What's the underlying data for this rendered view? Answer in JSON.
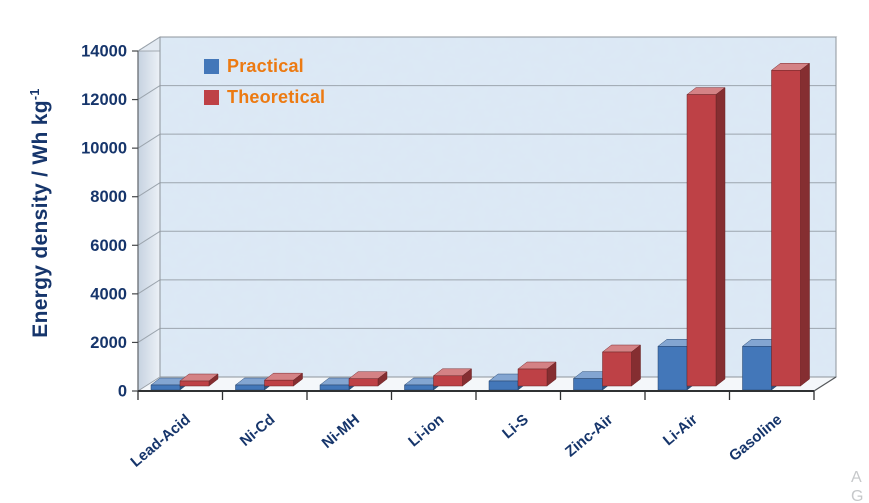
{
  "chart_data": {
    "type": "bar",
    "style": "3d-clustered",
    "title": "",
    "categories": [
      "Lead-Acid",
      "Ni-Cd",
      "Ni-MH",
      "Li-ion",
      "Li-S",
      "Zinc-Air",
      "Li-Air",
      "Gasoline"
    ],
    "series": [
      {
        "name": "Practical",
        "color": "#4377B9",
        "values": [
          35,
          50,
          80,
          160,
          370,
          470,
          1800,
          1800
        ]
      },
      {
        "name": "Theoretical",
        "color": "#BE4146",
        "values": [
          170,
          240,
          300,
          420,
          700,
          1400,
          12000,
          13000
        ]
      }
    ],
    "ylabel": "Energy density / Wh kg-1",
    "ylim": [
      0,
      14000
    ],
    "ytick_step": 2000,
    "yticks": [
      "0",
      "2000",
      "4000",
      "6000",
      "8000",
      "10000",
      "12000",
      "14000"
    ],
    "grid": true,
    "legend_position": "top-left-inside",
    "legend_text_color": "#EC7A12",
    "axis_text_color": "#16356B",
    "wall_color": "#DCE8F4",
    "gridline_color": "#9CA5AE"
  },
  "ylabel_parts": {
    "main": "Energy density / Wh kg",
    "sup": "-1"
  },
  "corner_fragment": {
    "line1": "A",
    "line2": "G"
  }
}
